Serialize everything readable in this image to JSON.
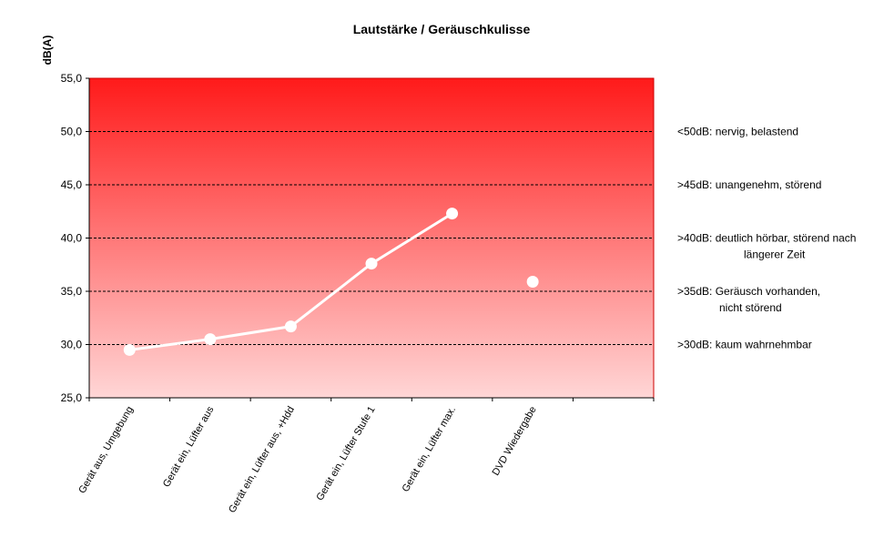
{
  "chart_data": {
    "type": "line",
    "title": "Lautstärke / Geräuschkulisse",
    "ylabel": "dB(A)",
    "xlabel": "",
    "ylim": [
      25,
      55
    ],
    "yticks": [
      "25,0",
      "30,0",
      "35,0",
      "40,0",
      "45,0",
      "50,0",
      "55,0"
    ],
    "grid": "horizontal dashed",
    "categories": [
      "Gerät aus, Umgebung",
      "Gerät ein, Lüfter aus",
      "Gerät ein, Lüfter aus, +Hdd",
      "Gerät ein, Lüfter Stufe 1",
      "Gerät ein, Lüfter max.",
      "DVD Wiedergabe"
    ],
    "series": [
      {
        "values": [
          29.5,
          30.5,
          31.7,
          37.6,
          42.3,
          null
        ],
        "color": "#ffffff"
      },
      {
        "values": [
          null,
          null,
          null,
          null,
          null,
          35.9
        ],
        "color": "#ffffff"
      }
    ],
    "annotations": [
      {
        "level": 50,
        "lines": [
          "<50dB: nervig, belastend"
        ]
      },
      {
        "level": 45,
        "lines": [
          ">45dB: unangenehm, störend"
        ]
      },
      {
        "level": 40,
        "lines": [
          ">40dB: deutlich hörbar, störend nach",
          "längerer Zeit"
        ]
      },
      {
        "level": 35,
        "lines": [
          ">35dB: Geräusch vorhanden,",
          "nicht störend"
        ]
      },
      {
        "level": 30,
        "lines": [
          ">30dB: kaum wahrnehmbar"
        ]
      }
    ],
    "colors": {
      "plot_top": "#ff1a1a",
      "plot_bottom": "#ffd6d6",
      "border": "#cc0000"
    }
  }
}
